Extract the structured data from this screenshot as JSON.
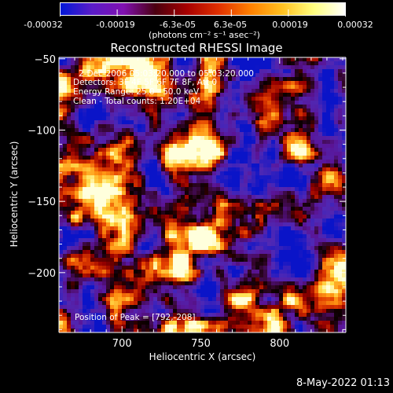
{
  "colorbar": {
    "ticks": [
      "-0.00032",
      "-0.00019",
      "-6.3e-05",
      "6.3e-05",
      "0.00019",
      "0.00032"
    ],
    "label": "(photons cm⁻² s⁻¹ asec⁻²)",
    "colors": [
      "#0018d8",
      "#5a1cc8",
      "#8010b0",
      "#4a0010",
      "#a80000",
      "#e03000",
      "#ff8000",
      "#ffc020",
      "#ffff80",
      "#ffffff"
    ]
  },
  "plot": {
    "title": "Reconstructed RHESSI Image",
    "info_lines": [
      "2-Dec-2006 05:03:20.000 to 05:03:20.000",
      "Detectors: 3F 4F 5F 6F 7F 8F, Att 0",
      "Energy Range: 25.0 - 50.0 keV",
      "Clean - Total counts: 1.20E+04"
    ],
    "peak_text": "Position of Peak = [792,-208]"
  },
  "chart_data": {
    "type": "heatmap",
    "title": "Reconstructed RHESSI Image",
    "xlabel": "Heliocentric X (arcsec)",
    "ylabel": "Heliocentric Y (arcsec)",
    "xlim": [
      660,
      842
    ],
    "ylim": [
      -242,
      -49
    ],
    "xticks": [
      700,
      750,
      800
    ],
    "yticks": [
      -50,
      -100,
      -150,
      -200
    ],
    "ytick_labels": [
      "−50",
      "−100",
      "−150",
      "−200"
    ],
    "colorbar_range": [
      -0.00032,
      0.00032
    ],
    "peak": [
      792,
      -208
    ]
  },
  "footer": {
    "timestamp": "8-May-2022 01:13"
  }
}
